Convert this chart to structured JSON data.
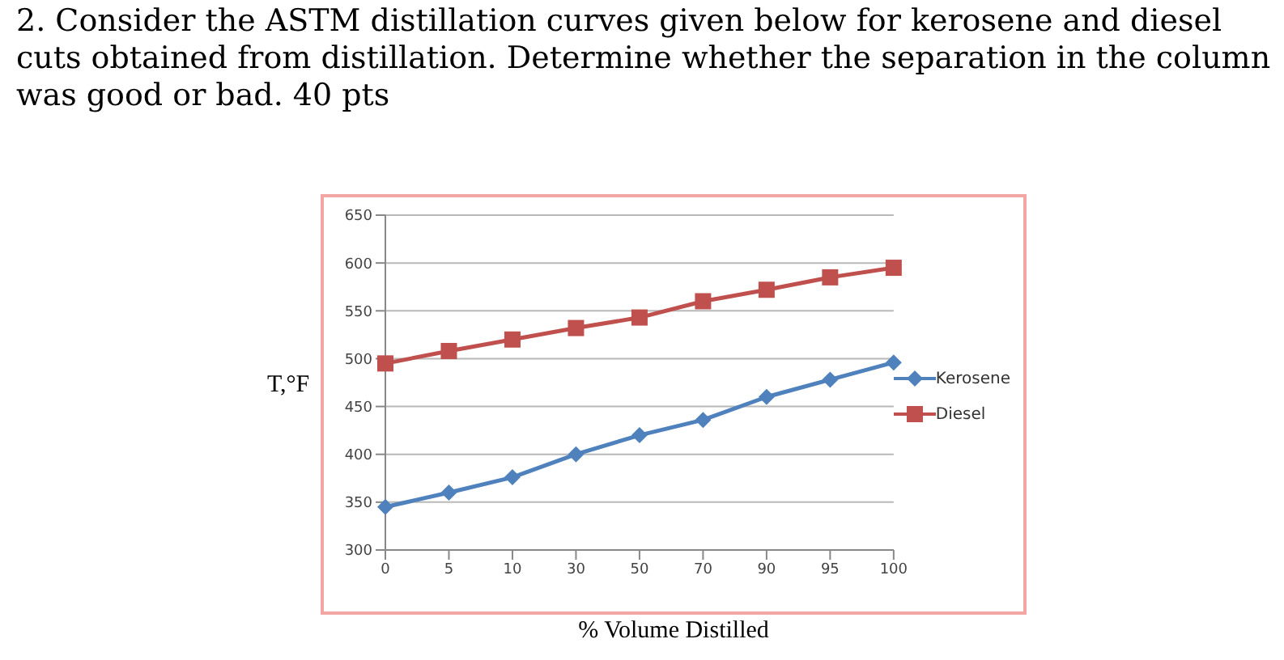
{
  "chart_data": {
    "type": "line",
    "title": "2. Consider the ASTM distillation curves given below for kerosene and diesel cuts obtained from distillation. Determine whether the separation in the column was good or bad. 40 pts",
    "xlabel": "% Volume Distilled",
    "ylabel": "T,°F",
    "categories": [
      "0",
      "5",
      "10",
      "30",
      "50",
      "70",
      "90",
      "95",
      "100"
    ],
    "series": [
      {
        "name": "Kerosene",
        "color": "#4f81bd",
        "marker": "diamond",
        "values": [
          345,
          360,
          376,
          400,
          420,
          436,
          460,
          478,
          496
        ]
      },
      {
        "name": "Diesel",
        "color": "#c0504d",
        "marker": "square",
        "values": [
          495,
          508,
          520,
          532,
          543,
          560,
          572,
          585,
          595
        ]
      }
    ],
    "ylim": [
      300,
      650
    ],
    "yticks": [
      300,
      350,
      400,
      450,
      500,
      550,
      600,
      650
    ],
    "grid": "y",
    "legend": "right"
  }
}
